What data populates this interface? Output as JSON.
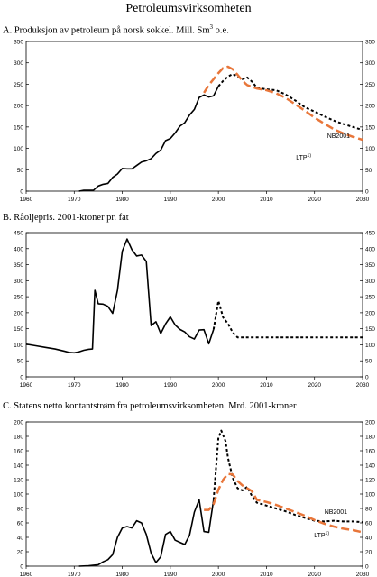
{
  "page_title": "Petroleumsvirksomheten",
  "colors": {
    "black": "#000000",
    "orange": "#e8763a",
    "axis": "#000000"
  },
  "chart_data": [
    {
      "type": "line",
      "title_prefix": "A.  Produksjon av petroleum på norsk sokkel. Mill. Sm",
      "title_sup": "3",
      "title_suffix": " o.e.",
      "xlim": [
        1960,
        2030
      ],
      "ylim": [
        0,
        350
      ],
      "x_ticks": [
        1960,
        1970,
        1980,
        1990,
        2000,
        2010,
        2020,
        2030
      ],
      "x_tick_labels": [
        "1960",
        "1970",
        "1980",
        "1990",
        "2000",
        "2010",
        "2020",
        "2030"
      ],
      "y_ticks": [
        0,
        50,
        100,
        150,
        200,
        250,
        300,
        350
      ],
      "y_tick_labels": [
        "0",
        "50",
        "100",
        "150",
        "200",
        "250",
        "300",
        "350"
      ],
      "series": [
        {
          "style": "historical",
          "color": "#000000",
          "points": [
            [
              1971,
              0
            ],
            [
              1972,
              2
            ],
            [
              1973,
              2
            ],
            [
              1974,
              2
            ],
            [
              1975,
              12
            ],
            [
              1976,
              16
            ],
            [
              1977,
              18
            ],
            [
              1978,
              32
            ],
            [
              1979,
              40
            ],
            [
              1980,
              53
            ],
            [
              1981,
              52
            ],
            [
              1982,
              52
            ],
            [
              1983,
              60
            ],
            [
              1984,
              68
            ],
            [
              1985,
              71
            ],
            [
              1986,
              76
            ],
            [
              1987,
              88
            ],
            [
              1988,
              96
            ],
            [
              1989,
              118
            ],
            [
              1990,
              123
            ],
            [
              1991,
              136
            ],
            [
              1992,
              152
            ],
            [
              1993,
              160
            ],
            [
              1994,
              178
            ],
            [
              1995,
              191
            ],
            [
              1996,
              219
            ],
            [
              1997,
              225
            ],
            [
              1998,
              220
            ],
            [
              1999,
              223
            ],
            [
              2000,
              245
            ]
          ]
        },
        {
          "name": "NB2001",
          "style": "dotted",
          "color": "#000000",
          "points": [
            [
              2000,
              245
            ],
            [
              2001,
              258
            ],
            [
              2002,
              268
            ],
            [
              2003,
              274
            ],
            [
              2004,
              268
            ],
            [
              2005,
              262
            ],
            [
              2006,
              266
            ],
            [
              2007,
              256
            ],
            [
              2008,
              242
            ],
            [
              2010,
              238
            ],
            [
              2012,
              236
            ],
            [
              2014,
              226
            ],
            [
              2016,
              212
            ],
            [
              2018,
              196
            ],
            [
              2020,
              186
            ],
            [
              2022,
              175
            ],
            [
              2024,
              165
            ],
            [
              2026,
              157
            ],
            [
              2028,
              150
            ],
            [
              2030,
              143
            ]
          ]
        },
        {
          "name": "LTP",
          "name_sup": "1)",
          "style": "dashed",
          "color": "#e8763a",
          "points": [
            [
              1997,
              230
            ],
            [
              1998,
              248
            ],
            [
              1999,
              262
            ],
            [
              2000,
              276
            ],
            [
              2001,
              288
            ],
            [
              2002,
              291
            ],
            [
              2003,
              285
            ],
            [
              2004,
              272
            ],
            [
              2005,
              258
            ],
            [
              2006,
              248
            ],
            [
              2008,
              240
            ],
            [
              2010,
              236
            ],
            [
              2012,
              229
            ],
            [
              2014,
              218
            ],
            [
              2016,
              203
            ],
            [
              2018,
              188
            ],
            [
              2020,
              172
            ],
            [
              2022,
              158
            ],
            [
              2024,
              145
            ],
            [
              2026,
              135
            ],
            [
              2028,
              127
            ],
            [
              2030,
              120
            ]
          ]
        }
      ]
    },
    {
      "type": "line",
      "title_prefix": "B.  Råoljepris. 2001-kroner pr. fat",
      "title_sup": "",
      "title_suffix": "",
      "xlim": [
        1960,
        2030
      ],
      "ylim": [
        0,
        450
      ],
      "x_ticks": [
        1960,
        1970,
        1980,
        1990,
        2000,
        2010,
        2020,
        2030
      ],
      "x_tick_labels": [
        "1960",
        "1970",
        "1980",
        "1990",
        "2000",
        "2010",
        "2020",
        "2030"
      ],
      "y_ticks": [
        0,
        50,
        100,
        150,
        200,
        250,
        300,
        350,
        400,
        450
      ],
      "y_tick_labels": [
        "0",
        "50",
        "100",
        "150",
        "200",
        "250",
        "300",
        "350",
        "400",
        "450"
      ],
      "series": [
        {
          "style": "historical",
          "color": "#000000",
          "points": [
            [
              1960,
              102
            ],
            [
              1962,
              97
            ],
            [
              1964,
              92
            ],
            [
              1966,
              87
            ],
            [
              1968,
              80
            ],
            [
              1969,
              76
            ],
            [
              1970,
              75
            ],
            [
              1971,
              78
            ],
            [
              1972,
              83
            ],
            [
              1973,
              86
            ],
            [
              1973.8,
              87
            ],
            [
              1974.3,
              270
            ],
            [
              1975,
              228
            ],
            [
              1976,
              227
            ],
            [
              1977,
              220
            ],
            [
              1978,
              198
            ],
            [
              1979,
              270
            ],
            [
              1980,
              392
            ],
            [
              1981,
              430
            ],
            [
              1982,
              397
            ],
            [
              1983,
              377
            ],
            [
              1984,
              380
            ],
            [
              1985,
              360
            ],
            [
              1986,
              160
            ],
            [
              1987,
              172
            ],
            [
              1988,
              135
            ],
            [
              1989,
              165
            ],
            [
              1990,
              187
            ],
            [
              1991,
              162
            ],
            [
              1992,
              148
            ],
            [
              1993,
              140
            ],
            [
              1994,
              125
            ],
            [
              1995,
              118
            ],
            [
              1996,
              146
            ],
            [
              1997,
              147
            ],
            [
              1998,
              103
            ],
            [
              1999,
              148
            ]
          ]
        },
        {
          "style": "dotted",
          "color": "#000000",
          "points": [
            [
              1999,
              148
            ],
            [
              2000,
              237
            ],
            [
              2001,
              185
            ],
            [
              2002,
              166
            ],
            [
              2003,
              138
            ],
            [
              2004,
              123
            ],
            [
              2030,
              123
            ]
          ]
        }
      ]
    },
    {
      "type": "line",
      "title_prefix": "C.  Statens netto kontantstrøm fra petroleumsvirksomheten. Mrd. 2001-kroner",
      "title_sup": "",
      "title_suffix": "",
      "xlim": [
        1960,
        2030
      ],
      "ylim": [
        0,
        200
      ],
      "x_ticks": [
        1960,
        1970,
        1980,
        1990,
        2000,
        2010,
        2020,
        2030
      ],
      "x_tick_labels": [
        "1960",
        "1970",
        "1980",
        "1990",
        "2000",
        "2010",
        "2020",
        "2030"
      ],
      "y_ticks": [
        0,
        20,
        40,
        60,
        80,
        100,
        120,
        140,
        160,
        180,
        200
      ],
      "y_tick_labels": [
        "0",
        "20",
        "40",
        "60",
        "80",
        "100",
        "120",
        "140",
        "160",
        "180",
        "200"
      ],
      "series": [
        {
          "style": "historical",
          "color": "#000000",
          "points": [
            [
              1971,
              0
            ],
            [
              1973,
              0.5
            ],
            [
              1975,
              2
            ],
            [
              1976,
              6
            ],
            [
              1977,
              9
            ],
            [
              1978,
              16
            ],
            [
              1979,
              40
            ],
            [
              1980,
              53
            ],
            [
              1981,
              55
            ],
            [
              1982,
              53
            ],
            [
              1983,
              63
            ],
            [
              1984,
              60
            ],
            [
              1985,
              44
            ],
            [
              1986,
              18
            ],
            [
              1987,
              5
            ],
            [
              1988,
              13
            ],
            [
              1989,
              44
            ],
            [
              1990,
              48
            ],
            [
              1991,
              36
            ],
            [
              1992,
              33
            ],
            [
              1993,
              30
            ],
            [
              1994,
              43
            ],
            [
              1995,
              75
            ],
            [
              1996,
              92
            ],
            [
              1997,
              48
            ],
            [
              1998,
              47
            ],
            [
              1999,
              92
            ]
          ]
        },
        {
          "name": "NB2001",
          "style": "dotted",
          "color": "#000000",
          "points": [
            [
              1999,
              92
            ],
            [
              2000,
              178
            ],
            [
              2000.6,
              188
            ],
            [
              2001.5,
              173
            ],
            [
              2002,
              150
            ],
            [
              2003,
              122
            ],
            [
              2004,
              108
            ],
            [
              2005,
              105
            ],
            [
              2006,
              110
            ],
            [
              2007,
              97
            ],
            [
              2008,
              88
            ],
            [
              2010,
              84
            ],
            [
              2012,
              80
            ],
            [
              2014,
              76
            ],
            [
              2016,
              71
            ],
            [
              2018,
              67
            ],
            [
              2020,
              63
            ],
            [
              2022,
              62
            ],
            [
              2024,
              63
            ],
            [
              2026,
              62
            ],
            [
              2028,
              62
            ],
            [
              2030,
              61
            ]
          ]
        },
        {
          "name": "LTP",
          "name_sup": "1)",
          "style": "dashed",
          "color": "#e8763a",
          "points": [
            [
              1997,
              78
            ],
            [
              1998,
              78
            ],
            [
              1999,
              86
            ],
            [
              2000,
              106
            ],
            [
              2001,
              120
            ],
            [
              2002,
              128
            ],
            [
              2003,
              127
            ],
            [
              2004,
              118
            ],
            [
              2005,
              112
            ],
            [
              2006,
              108
            ],
            [
              2007,
              104
            ],
            [
              2008,
              92
            ],
            [
              2010,
              89
            ],
            [
              2012,
              85
            ],
            [
              2014,
              80
            ],
            [
              2016,
              75
            ],
            [
              2018,
              70
            ],
            [
              2020,
              64
            ],
            [
              2022,
              59
            ],
            [
              2024,
              55
            ],
            [
              2026,
              52
            ],
            [
              2028,
              50
            ],
            [
              2030,
              47
            ]
          ]
        }
      ]
    }
  ]
}
